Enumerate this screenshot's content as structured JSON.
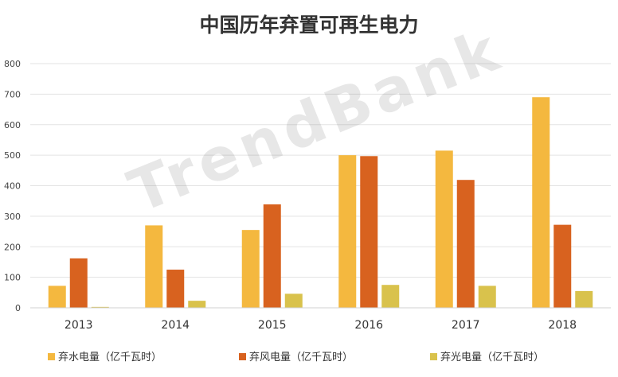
{
  "chart_data": {
    "type": "bar",
    "title": "中国历年弃置可再生电力",
    "categories": [
      "2013",
      "2014",
      "2015",
      "2016",
      "2017",
      "2018"
    ],
    "ylim": [
      0,
      800
    ],
    "yticks": [
      "0",
      "100",
      "200",
      "300",
      "400",
      "500",
      "600",
      "700",
      "800"
    ],
    "grid": true,
    "legend_position": "bottom",
    "series": [
      {
        "name": "弃水电量（亿千瓦时）",
        "color": "#F4B83F",
        "values": [
          72,
          270,
          255,
          500,
          515,
          690
        ]
      },
      {
        "name": "弃风电量（亿千瓦时）",
        "color": "#D8621F",
        "values": [
          162,
          125,
          339,
          497,
          419,
          272
        ]
      },
      {
        "name": "弃光电量（亿千瓦时）",
        "color": "#D9C24C",
        "values": [
          3,
          23,
          46,
          75,
          72,
          55
        ]
      }
    ]
  },
  "watermark": "TrendBank"
}
